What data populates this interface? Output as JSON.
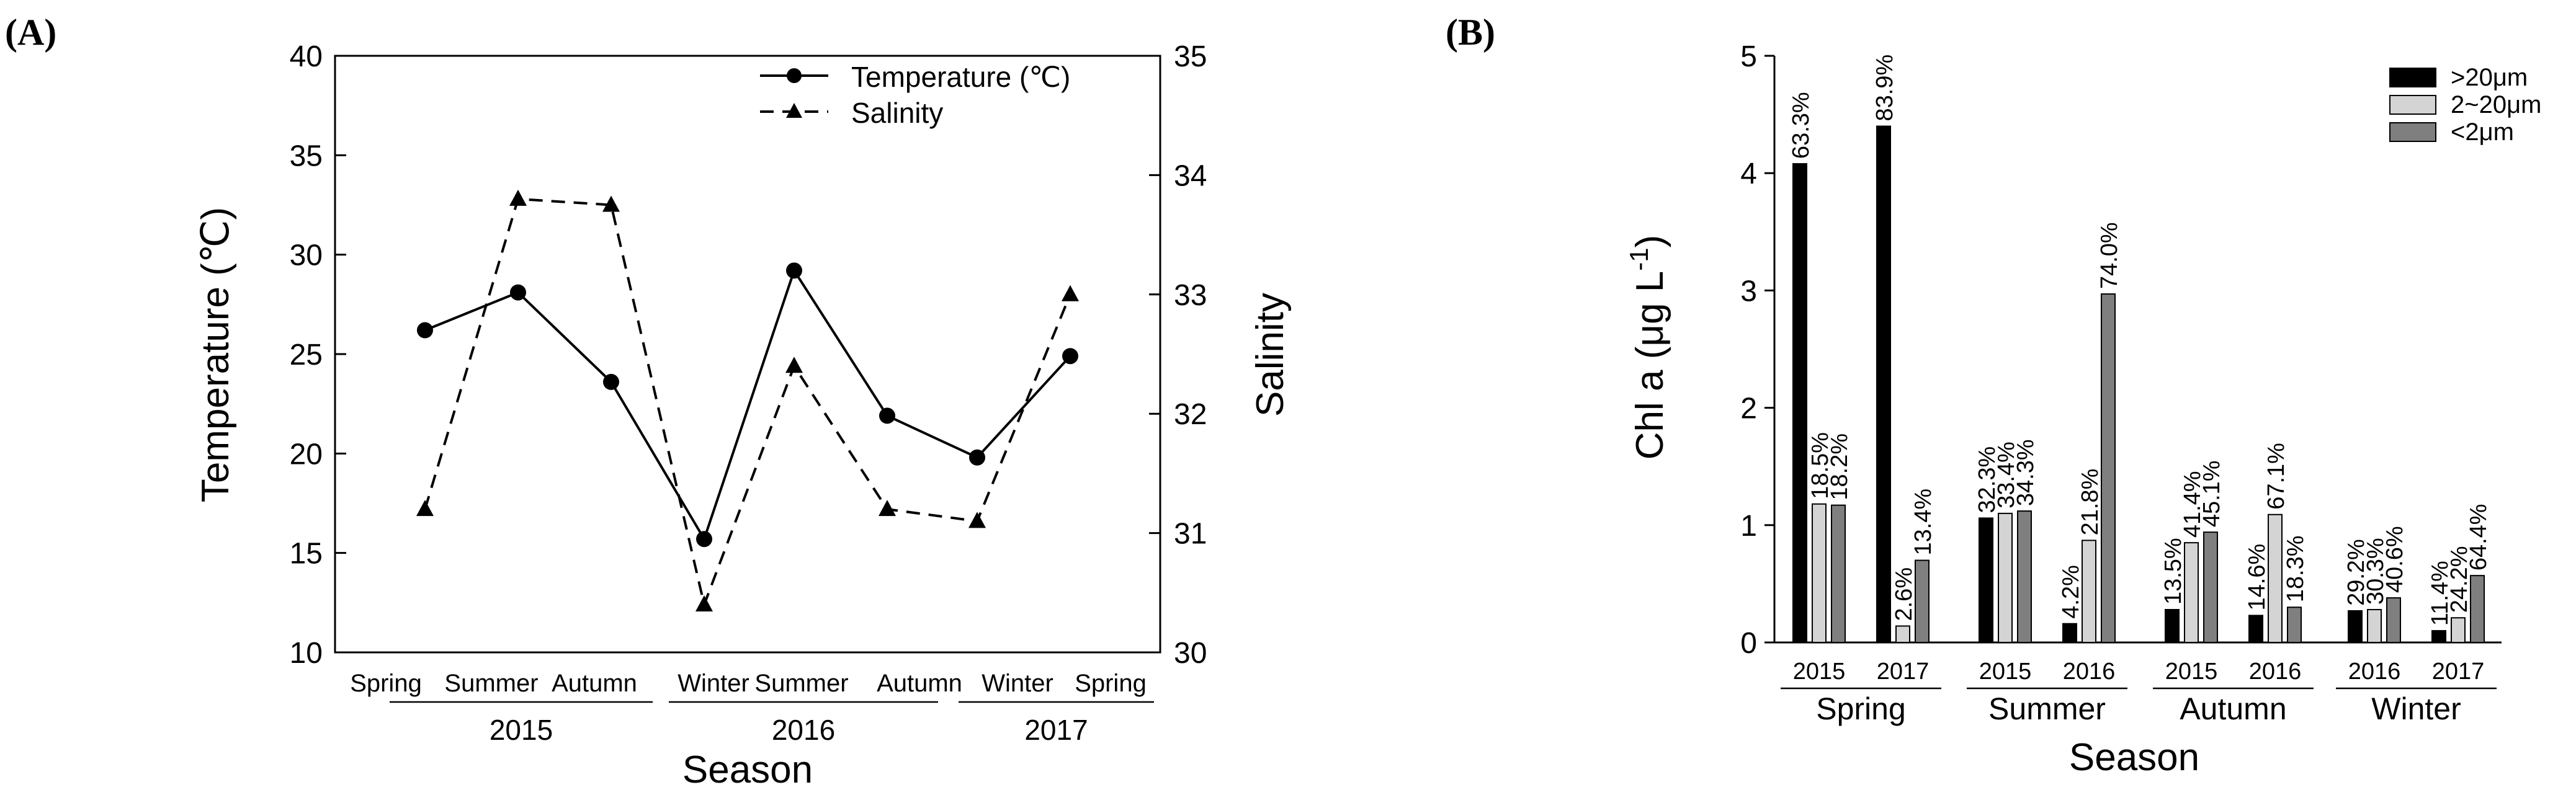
{
  "chart_data": [
    {
      "type": "line",
      "panel_label": "(A)",
      "xlabel": "Season",
      "ylabel_left": "Temperature (℃)",
      "ylabel_right": "Salinity",
      "ylim_left": [
        10,
        40
      ],
      "ylim_right": [
        30,
        35
      ],
      "yticks_left": [
        "10",
        "15",
        "20",
        "25",
        "30",
        "35",
        "40"
      ],
      "yticks_right": [
        "30",
        "31",
        "32",
        "33",
        "34",
        "35"
      ],
      "x_categories": [
        "Spring",
        "Summer",
        "Autumn",
        "Winter",
        "Summer",
        "Autumn",
        "Winter",
        "Spring"
      ],
      "year_groups": [
        {
          "label": "2015",
          "from": 0,
          "to": 2
        },
        {
          "label": "2016",
          "from": 3,
          "to": 5
        },
        {
          "label": "2017",
          "from": 6,
          "to": 7
        }
      ],
      "series": [
        {
          "name": "Temperature (℃)",
          "axis": "left",
          "marker": "circle",
          "line": "solid",
          "values": [
            26.2,
            28.1,
            23.6,
            15.7,
            29.2,
            21.9,
            19.8,
            24.9
          ]
        },
        {
          "name": "Salinity",
          "axis": "right",
          "marker": "triangle",
          "line": "dashed",
          "values": [
            31.2,
            33.8,
            33.75,
            30.4,
            32.4,
            31.2,
            31.1,
            33.0
          ]
        }
      ]
    },
    {
      "type": "bar",
      "panel_label": "(B)",
      "xlabel": "Season",
      "ylabel": "Chl a (μg L",
      "ylabel_sup": "-1",
      "ylabel_close": ")",
      "ylim": [
        0,
        5
      ],
      "yticks": [
        "0",
        "1",
        "2",
        "3",
        "4",
        "5"
      ],
      "legend": [
        ">20μm",
        "2~20μm",
        "<2μm"
      ],
      "colors": [
        "#000000",
        "#d4d4d4",
        "#7f7f7f"
      ],
      "groups": [
        {
          "season": "Spring",
          "years": [
            "2015",
            "2017"
          ]
        },
        {
          "season": "Summer",
          "years": [
            "2015",
            "2016"
          ]
        },
        {
          "season": "Autumn",
          "years": [
            "2015",
            "2016"
          ]
        },
        {
          "season": "Winter",
          "years": [
            "2016",
            "2017"
          ]
        }
      ],
      "bars": [
        {
          "values": [
            4.08,
            1.18,
            1.17
          ],
          "labels": [
            "63.3%",
            "18.5%",
            "18.2%"
          ]
        },
        {
          "values": [
            4.4,
            0.14,
            0.7
          ],
          "labels": [
            "83.9%",
            "2.6%",
            "13.4%"
          ]
        },
        {
          "values": [
            1.06,
            1.1,
            1.12
          ],
          "labels": [
            "32.3%",
            "33.4%",
            "34.3%"
          ]
        },
        {
          "values": [
            0.16,
            0.87,
            2.97
          ],
          "labels": [
            "4.2%",
            "21.8%",
            "74.0%"
          ]
        },
        {
          "values": [
            0.28,
            0.85,
            0.94
          ],
          "labels": [
            "13.5%",
            "41.4%",
            "45.1%"
          ]
        },
        {
          "values": [
            0.23,
            1.09,
            0.3
          ],
          "labels": [
            "14.6%",
            "67.1%",
            "18.3%"
          ]
        },
        {
          "values": [
            0.27,
            0.28,
            0.38
          ],
          "labels": [
            "29.2%",
            "30.3%",
            "40.6%"
          ]
        },
        {
          "values": [
            0.1,
            0.21,
            0.57
          ],
          "labels": [
            "11.4%",
            "24.2%",
            "64.4%"
          ]
        }
      ]
    }
  ]
}
